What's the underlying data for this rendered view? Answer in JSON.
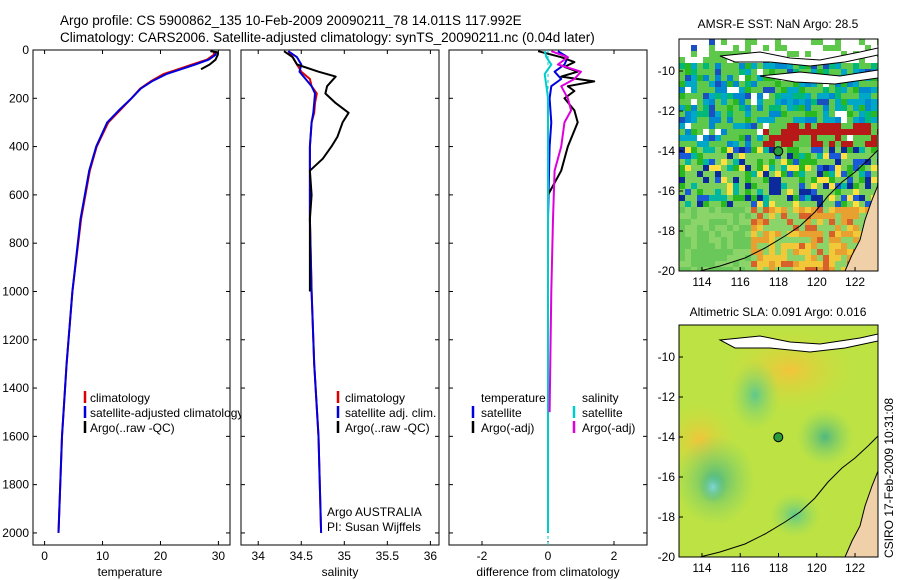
{
  "header": {
    "title_line1": "Argo profile: CS 5900862_135 10-Feb-2009 20090211_78 14.011S 117.992E",
    "title_line2": "Climatology: CARS2006. Satellite-adjusted climatology: synTS_20090211.nc (0.04d later)"
  },
  "side_label": "CSIRO 17-Feb-2009 10:31:08",
  "colors": {
    "climatology": "#dd0000",
    "satellite": "#0000dd",
    "argo": "#000000",
    "salinity_sat": "#00cccc",
    "salinity_argo": "#dd00dd"
  },
  "chart_data": [
    {
      "type": "line",
      "name": "temperature",
      "xlabel": "temperature",
      "xlim": [
        -2,
        32
      ],
      "ylim": [
        0,
        2050
      ],
      "xticks": [
        "0",
        "10",
        "20",
        "30"
      ],
      "yticks": [
        "0",
        "200",
        "400",
        "600",
        "800",
        "1000",
        "1200",
        "1400",
        "1600",
        "1800",
        "2000"
      ],
      "legend": [
        "climatology",
        "satellite-adjusted climatology",
        "Argo(..raw -QC)"
      ],
      "series": [
        {
          "name": "climatology",
          "depth": [
            5,
            20,
            40,
            60,
            80,
            100,
            130,
            160,
            200,
            250,
            300,
            400,
            500,
            700,
            1000,
            1300,
            1600,
            2000
          ],
          "values": [
            29.3,
            29.2,
            28.0,
            25.5,
            23.0,
            20.5,
            18.3,
            16.5,
            15.0,
            13.0,
            11.0,
            9.0,
            7.8,
            6.3,
            4.8,
            3.8,
            3.0,
            2.4
          ]
        },
        {
          "name": "satellite",
          "depth": [
            5,
            20,
            40,
            60,
            80,
            100,
            130,
            160,
            200,
            250,
            300,
            400,
            500,
            700,
            1000,
            1300,
            1600,
            2000
          ],
          "values": [
            29.6,
            29.5,
            28.3,
            26.0,
            23.5,
            21.0,
            18.5,
            16.6,
            15.0,
            12.8,
            10.8,
            8.9,
            7.7,
            6.2,
            4.8,
            3.8,
            3.0,
            2.4
          ]
        },
        {
          "name": "argo",
          "depth": [
            5,
            10,
            20,
            40,
            60,
            80
          ],
          "values": [
            28.6,
            29.9,
            29.9,
            29.5,
            28.5,
            27.0
          ]
        }
      ]
    },
    {
      "type": "line",
      "name": "salinity",
      "xlabel": "salinity",
      "xlim": [
        33.8,
        36.1
      ],
      "ylim": [
        0,
        2050
      ],
      "xticks": [
        "34",
        "34.5",
        "35",
        "35.5",
        "36"
      ],
      "legend": [
        "climatology",
        "satellite adj. clim.",
        "Argo(..raw -QC)"
      ],
      "annotation": [
        "Argo AUSTRALIA",
        "PI: Susan Wijffels"
      ],
      "series": [
        {
          "name": "climatology",
          "depth": [
            5,
            30,
            60,
            90,
            120,
            150,
            180,
            220,
            260,
            300,
            400,
            500,
            700,
            1000,
            1300,
            1600,
            2000
          ],
          "values": [
            34.35,
            34.4,
            34.45,
            34.5,
            34.6,
            34.62,
            34.68,
            34.66,
            34.65,
            34.62,
            34.6,
            34.6,
            34.6,
            34.62,
            34.65,
            34.7,
            34.73
          ]
        },
        {
          "name": "satellite",
          "depth": [
            5,
            30,
            60,
            90,
            120,
            150,
            180,
            220,
            260,
            300,
            400,
            500,
            700,
            1000,
            1300,
            1600,
            2000
          ],
          "values": [
            34.35,
            34.45,
            34.5,
            34.48,
            34.55,
            34.62,
            34.66,
            34.65,
            34.64,
            34.62,
            34.6,
            34.6,
            34.6,
            34.62,
            34.65,
            34.7,
            34.73
          ]
        },
        {
          "name": "argo",
          "depth": [
            5,
            30,
            60,
            90,
            110,
            150,
            180,
            220,
            260,
            300,
            330,
            360,
            400,
            450,
            500,
            600,
            700,
            1000
          ],
          "values": [
            34.3,
            34.4,
            34.45,
            34.7,
            34.9,
            34.8,
            34.78,
            34.9,
            35.05,
            34.98,
            34.95,
            34.92,
            34.85,
            34.75,
            34.6,
            34.62,
            34.6,
            34.6
          ]
        }
      ]
    },
    {
      "type": "line",
      "name": "difference",
      "xlabel": "difference from climatology",
      "xlim": [
        -3,
        3
      ],
      "ylim": [
        0,
        2050
      ],
      "xticks": [
        "-2",
        "0",
        "2"
      ],
      "legend_left": {
        "heading": "temperature",
        "items": [
          "satellite",
          "Argo(-adj)"
        ]
      },
      "legend_right": {
        "heading": "salinity",
        "items": [
          "satellite",
          "Argo(-adj)"
        ]
      },
      "series": [
        {
          "name": "temp_satellite",
          "depth": [
            5,
            30,
            60,
            90,
            120,
            150,
            200,
            300,
            400,
            700,
            1000,
            1500,
            2000
          ],
          "values": [
            0.3,
            0.6,
            0.5,
            0.2,
            0.4,
            0.1,
            0.05,
            0.1,
            0.05,
            0.0,
            0.0,
            0.0,
            0.0
          ]
        },
        {
          "name": "temp_argo",
          "depth": [
            5,
            30,
            50,
            70,
            90,
            110,
            130,
            150,
            170,
            200,
            250,
            300,
            400,
            500,
            600
          ],
          "values": [
            -0.3,
            0.4,
            0.8,
            0.5,
            0.9,
            0.4,
            1.4,
            0.6,
            0.8,
            0.5,
            0.8,
            0.9,
            0.6,
            0.4,
            0.0
          ]
        },
        {
          "name": "sal_satellite",
          "depth": [
            5,
            30,
            60,
            100,
            150,
            200,
            300,
            400,
            600,
            1000,
            1500,
            2000
          ],
          "values": [
            -0.1,
            -0.05,
            0.1,
            -0.1,
            -0.05,
            0.0,
            0.0,
            0.0,
            0.0,
            0.0,
            0.0,
            0.0
          ]
        },
        {
          "name": "sal_argo",
          "depth": [
            5,
            30,
            60,
            90,
            120,
            150,
            200,
            250,
            300,
            400,
            500,
            700,
            1000,
            1500
          ],
          "values": [
            0.1,
            0.6,
            0.3,
            1.0,
            0.8,
            0.4,
            0.6,
            0.7,
            0.5,
            0.4,
            0.2,
            0.15,
            0.1,
            0.05
          ]
        }
      ]
    },
    {
      "type": "heatmap",
      "name": "sst_map",
      "title": "AMSR-E SST: NaN Argo: 28.5",
      "xlim": [
        112.8,
        123.2
      ],
      "ylim": [
        -20,
        -8.4
      ],
      "xticks": [
        "114",
        "116",
        "118",
        "120",
        "122"
      ],
      "yticks": [
        "-10",
        "-12",
        "-14",
        "-16",
        "-18",
        "-20"
      ],
      "marker": {
        "lon": 117.99,
        "lat": -14.01
      }
    },
    {
      "type": "heatmap",
      "name": "sla_map",
      "title": "Altimetric SLA: 0.091 Argo: 0.016",
      "xlim": [
        112.8,
        123.2
      ],
      "ylim": [
        -20,
        -8.4
      ],
      "xticks": [
        "114",
        "116",
        "118",
        "120",
        "122"
      ],
      "yticks": [
        "-10",
        "-12",
        "-14",
        "-16",
        "-18",
        "-20"
      ],
      "marker": {
        "lon": 117.99,
        "lat": -14.01
      }
    }
  ]
}
